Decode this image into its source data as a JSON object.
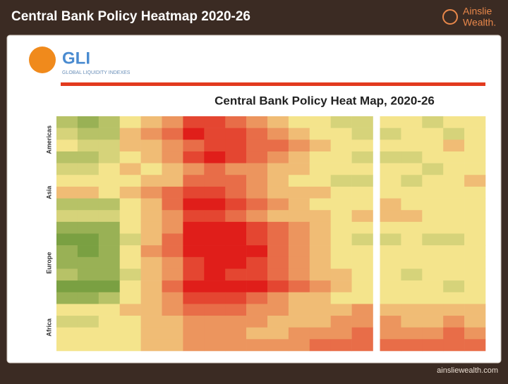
{
  "header": {
    "title": "Central Bank Policy Heatmap 2020-26",
    "brand": [
      "Ainslie",
      "Wealth."
    ]
  },
  "logo": {
    "name": "GLI",
    "subtitle": "GLOBAL LIQUIDITY INDEXES"
  },
  "footer": {
    "url": "ainsliewealth.com"
  },
  "chart_data": {
    "type": "heatmap",
    "title": "Central Bank Policy Heat Map, 2020-26",
    "colorscale": [
      "#5c8f30",
      "#f4e48c",
      "#e01e1a"
    ],
    "vlim": [
      0,
      10
    ],
    "groups": [
      {
        "name": "Americas",
        "rows": [
          [
            3,
            2,
            3,
            5,
            6,
            7,
            9,
            9,
            8,
            7,
            6,
            5,
            5,
            4,
            4,
            5,
            5,
            4,
            5,
            5
          ],
          [
            4,
            3,
            3,
            6,
            7,
            8,
            10,
            9,
            9,
            8,
            7,
            6,
            5,
            5,
            4,
            4,
            5,
            5,
            4,
            5
          ],
          [
            5,
            4,
            4,
            6,
            6,
            7,
            8,
            9,
            9,
            8,
            8,
            7,
            6,
            5,
            5,
            5,
            5,
            5,
            6,
            5
          ],
          [
            3,
            3,
            4,
            5,
            6,
            7,
            9,
            10,
            9,
            8,
            7,
            6,
            5,
            5,
            4,
            4,
            4,
            5,
            5,
            5
          ]
        ]
      },
      {
        "name": "Asia",
        "rows": [
          [
            4,
            4,
            5,
            6,
            5,
            6,
            7,
            8,
            7,
            7,
            6,
            6,
            5,
            5,
            5,
            5,
            5,
            4,
            5,
            5
          ],
          [
            5,
            5,
            5,
            5,
            6,
            6,
            8,
            8,
            8,
            7,
            6,
            5,
            5,
            4,
            4,
            5,
            4,
            5,
            5,
            6
          ],
          [
            6,
            6,
            5,
            6,
            7,
            8,
            9,
            9,
            8,
            7,
            6,
            6,
            6,
            5,
            5,
            5,
            5,
            5,
            5,
            5
          ],
          [
            3,
            3,
            3,
            5,
            6,
            8,
            10,
            10,
            9,
            8,
            7,
            6,
            5,
            5,
            5,
            6,
            5,
            5,
            5,
            5
          ],
          [
            4,
            4,
            4,
            5,
            6,
            7,
            9,
            9,
            8,
            7,
            6,
            6,
            6,
            5,
            6,
            6,
            6,
            5,
            5,
            5
          ]
        ]
      },
      {
        "name": "Europe",
        "rows": [
          [
            2,
            2,
            2,
            5,
            6,
            7,
            10,
            10,
            10,
            9,
            8,
            7,
            6,
            5,
            5,
            5,
            5,
            5,
            5,
            5
          ],
          [
            1,
            1,
            2,
            4,
            6,
            8,
            10,
            10,
            10,
            9,
            8,
            7,
            6,
            5,
            4,
            4,
            5,
            4,
            4,
            5
          ],
          [
            2,
            1,
            2,
            5,
            7,
            8,
            10,
            10,
            10,
            10,
            8,
            7,
            6,
            5,
            5,
            5,
            5,
            5,
            5,
            5
          ],
          [
            2,
            2,
            2,
            5,
            6,
            7,
            9,
            10,
            10,
            9,
            8,
            7,
            6,
            5,
            5,
            5,
            5,
            5,
            5,
            5
          ],
          [
            3,
            2,
            2,
            4,
            6,
            7,
            9,
            10,
            9,
            9,
            8,
            7,
            6,
            6,
            5,
            5,
            4,
            5,
            5,
            5
          ],
          [
            1,
            1,
            1,
            5,
            6,
            8,
            10,
            10,
            10,
            10,
            9,
            8,
            7,
            6,
            5,
            5,
            5,
            5,
            4,
            5
          ],
          [
            2,
            2,
            3,
            5,
            6,
            7,
            9,
            9,
            9,
            8,
            7,
            6,
            6,
            5,
            5,
            5,
            5,
            5,
            5,
            5
          ]
        ]
      },
      {
        "name": "Africa",
        "rows": [
          [
            5,
            5,
            5,
            6,
            6,
            7,
            8,
            8,
            8,
            7,
            7,
            6,
            6,
            6,
            7,
            6,
            6,
            6,
            6,
            6
          ],
          [
            4,
            4,
            5,
            5,
            6,
            6,
            7,
            7,
            7,
            7,
            6,
            6,
            6,
            7,
            7,
            7,
            6,
            6,
            7,
            6
          ],
          [
            5,
            5,
            5,
            5,
            6,
            6,
            7,
            7,
            7,
            6,
            6,
            7,
            7,
            7,
            8,
            7,
            7,
            7,
            8,
            7
          ],
          [
            5,
            5,
            5,
            5,
            6,
            6,
            7,
            7,
            7,
            7,
            7,
            7,
            8,
            8,
            8,
            8,
            8,
            8,
            8,
            8
          ]
        ]
      }
    ]
  }
}
